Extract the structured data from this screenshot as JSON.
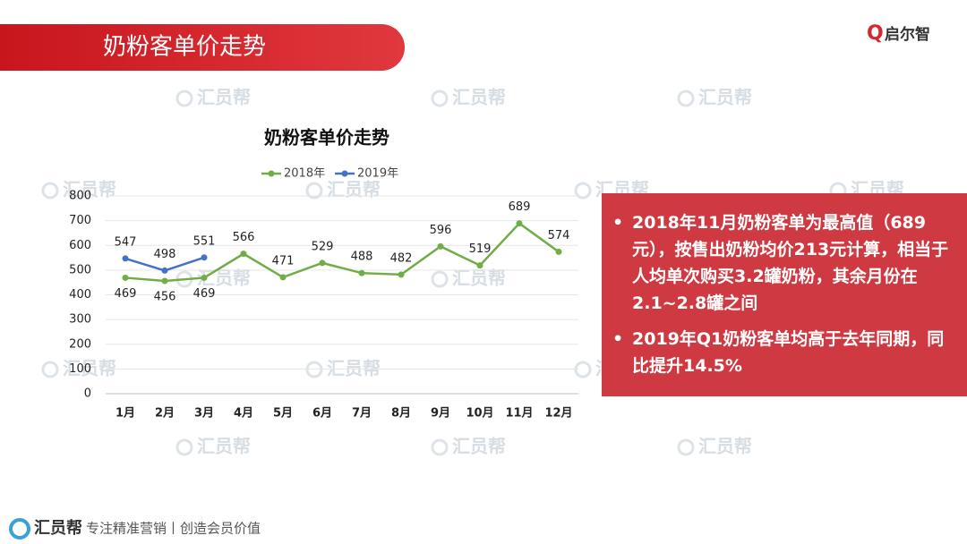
{
  "header": {
    "title": "奶粉客单价走势",
    "logo": "启尔智"
  },
  "watermark": "汇员帮",
  "notes": [
    "2018年11月奶粉客单为最高值（689元），按售出奶粉均价213元计算，相当于人均单次购买3.2罐奶粉，其余月份在2.1~2.8罐之间",
    "2019年Q1奶粉客单均高于去年同期，同比提升14.5%"
  ],
  "footer": {
    "brand": "汇员帮",
    "slogan": "专注精准营销丨创造会员价值"
  },
  "chart_data": {
    "type": "line",
    "title": "奶粉客单价走势",
    "categories": [
      "1月",
      "2月",
      "3月",
      "4月",
      "5月",
      "6月",
      "7月",
      "8月",
      "9月",
      "10月",
      "11月",
      "12月"
    ],
    "series": [
      {
        "name": "2018年",
        "color": "#70ad47",
        "values": [
          469,
          456,
          469,
          566,
          471,
          529,
          488,
          482,
          596,
          519,
          689,
          574
        ]
      },
      {
        "name": "2019年",
        "color": "#4472c4",
        "values": [
          547,
          498,
          551,
          null,
          null,
          null,
          null,
          null,
          null,
          null,
          null,
          null
        ]
      }
    ],
    "ylim": [
      0,
      800
    ],
    "yticks": [
      0,
      100,
      200,
      300,
      400,
      500,
      600,
      700,
      800
    ],
    "grid": true,
    "legend": "top"
  }
}
